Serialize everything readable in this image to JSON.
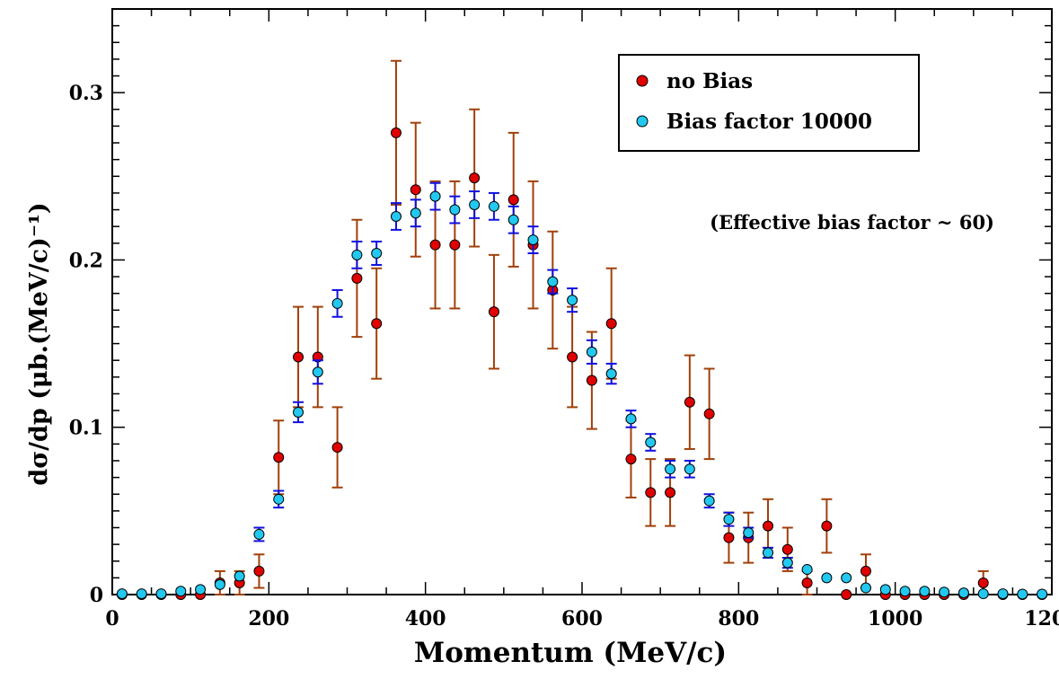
{
  "chart_data": {
    "type": "scatter",
    "xlabel": "Momentum (MeV/c)",
    "ylabel": "dσ/dp (μb.(MeV/c)⁻¹)",
    "xlim": [
      0,
      1200
    ],
    "ylim": [
      0,
      0.35
    ],
    "x_ticks": [
      0,
      200,
      400,
      600,
      800,
      1000,
      1200
    ],
    "x_tick_labels": [
      "0",
      "200",
      "400",
      "600",
      "800",
      "1000",
      "1200"
    ],
    "y_ticks": [
      0,
      0.1,
      0.2,
      0.3
    ],
    "y_tick_labels": [
      "0",
      "0.1",
      "0.2",
      "0.3"
    ],
    "grid": false,
    "legend_position": "top-right",
    "annotation": "(Effective bias factor ~ 60)",
    "series": [
      {
        "name": "no Bias",
        "marker_color": "#e00000",
        "error_color": "#a0400a",
        "points": [
          [
            12.5,
            0.0,
            0.0
          ],
          [
            37.5,
            0.0,
            0.0
          ],
          [
            62.5,
            0.0,
            0.0
          ],
          [
            87.5,
            0.0,
            0.0
          ],
          [
            112.5,
            0.0,
            0.0
          ],
          [
            137.5,
            0.007,
            0.007
          ],
          [
            162.5,
            0.007,
            0.007
          ],
          [
            187.5,
            0.014,
            0.01
          ],
          [
            212.5,
            0.082,
            0.022
          ],
          [
            237.5,
            0.142,
            0.03
          ],
          [
            262.5,
            0.142,
            0.03
          ],
          [
            287.5,
            0.088,
            0.024
          ],
          [
            312.5,
            0.189,
            0.035
          ],
          [
            337.5,
            0.162,
            0.033
          ],
          [
            362.5,
            0.276,
            0.043
          ],
          [
            387.5,
            0.242,
            0.04
          ],
          [
            412.5,
            0.209,
            0.038
          ],
          [
            437.5,
            0.209,
            0.038
          ],
          [
            462.5,
            0.249,
            0.041
          ],
          [
            487.5,
            0.169,
            0.034
          ],
          [
            512.5,
            0.236,
            0.04
          ],
          [
            537.5,
            0.209,
            0.038
          ],
          [
            562.5,
            0.182,
            0.035
          ],
          [
            587.5,
            0.142,
            0.03
          ],
          [
            612.5,
            0.128,
            0.029
          ],
          [
            637.5,
            0.162,
            0.033
          ],
          [
            662.5,
            0.081,
            0.023
          ],
          [
            687.5,
            0.061,
            0.02
          ],
          [
            712.5,
            0.061,
            0.02
          ],
          [
            737.5,
            0.115,
            0.028
          ],
          [
            762.5,
            0.108,
            0.027
          ],
          [
            787.5,
            0.034,
            0.015
          ],
          [
            812.5,
            0.034,
            0.015
          ],
          [
            837.5,
            0.041,
            0.016
          ],
          [
            862.5,
            0.027,
            0.013
          ],
          [
            887.5,
            0.007,
            0.007
          ],
          [
            912.5,
            0.041,
            0.016
          ],
          [
            937.5,
            0.0,
            0.0
          ],
          [
            962.5,
            0.014,
            0.01
          ],
          [
            987.5,
            0.0,
            0.0
          ],
          [
            1012.5,
            0.0,
            0.0
          ],
          [
            1037.5,
            0.0,
            0.0
          ],
          [
            1062.5,
            0.0,
            0.0
          ],
          [
            1087.5,
            0.0,
            0.0
          ],
          [
            1112.5,
            0.007,
            0.007
          ],
          [
            1137.5,
            0.0,
            0.0
          ],
          [
            1162.5,
            0.0,
            0.0
          ],
          [
            1187.5,
            0.0,
            0.0
          ]
        ]
      },
      {
        "name": "Bias factor 10000",
        "marker_color": "#22c8f0",
        "error_color": "#1010e0",
        "points": [
          [
            12.5,
            0.0005,
            0.0003
          ],
          [
            37.5,
            0.0005,
            0.0003
          ],
          [
            62.5,
            0.0005,
            0.0003
          ],
          [
            87.5,
            0.002,
            0.0008
          ],
          [
            112.5,
            0.003,
            0.001
          ],
          [
            137.5,
            0.006,
            0.0015
          ],
          [
            162.5,
            0.011,
            0.002
          ],
          [
            187.5,
            0.036,
            0.004
          ],
          [
            212.5,
            0.057,
            0.005
          ],
          [
            237.5,
            0.109,
            0.006
          ],
          [
            262.5,
            0.133,
            0.007
          ],
          [
            287.5,
            0.174,
            0.008
          ],
          [
            312.5,
            0.203,
            0.008
          ],
          [
            337.5,
            0.204,
            0.007
          ],
          [
            362.5,
            0.226,
            0.008
          ],
          [
            387.5,
            0.228,
            0.008
          ],
          [
            412.5,
            0.238,
            0.008
          ],
          [
            437.5,
            0.23,
            0.008
          ],
          [
            462.5,
            0.233,
            0.008
          ],
          [
            487.5,
            0.232,
            0.008
          ],
          [
            512.5,
            0.224,
            0.008
          ],
          [
            537.5,
            0.212,
            0.008
          ],
          [
            562.5,
            0.187,
            0.007
          ],
          [
            587.5,
            0.176,
            0.007
          ],
          [
            612.5,
            0.145,
            0.007
          ],
          [
            637.5,
            0.132,
            0.006
          ],
          [
            662.5,
            0.105,
            0.005
          ],
          [
            687.5,
            0.091,
            0.005
          ],
          [
            712.5,
            0.075,
            0.005
          ],
          [
            737.5,
            0.075,
            0.005
          ],
          [
            762.5,
            0.056,
            0.004
          ],
          [
            787.5,
            0.045,
            0.004
          ],
          [
            812.5,
            0.037,
            0.003
          ],
          [
            837.5,
            0.025,
            0.003
          ],
          [
            862.5,
            0.019,
            0.003
          ],
          [
            887.5,
            0.015,
            0.002
          ],
          [
            912.5,
            0.01,
            0.002
          ],
          [
            937.5,
            0.01,
            0.002
          ],
          [
            962.5,
            0.004,
            0.001
          ],
          [
            987.5,
            0.003,
            0.001
          ],
          [
            1012.5,
            0.002,
            0.001
          ],
          [
            1037.5,
            0.002,
            0.001
          ],
          [
            1062.5,
            0.0015,
            0.0008
          ],
          [
            1087.5,
            0.001,
            0.0006
          ],
          [
            1112.5,
            0.0005,
            0.0004
          ],
          [
            1137.5,
            0.0005,
            0.0003
          ],
          [
            1162.5,
            0.0003,
            0.0002
          ],
          [
            1187.5,
            0.0003,
            0.0002
          ]
        ]
      }
    ]
  }
}
